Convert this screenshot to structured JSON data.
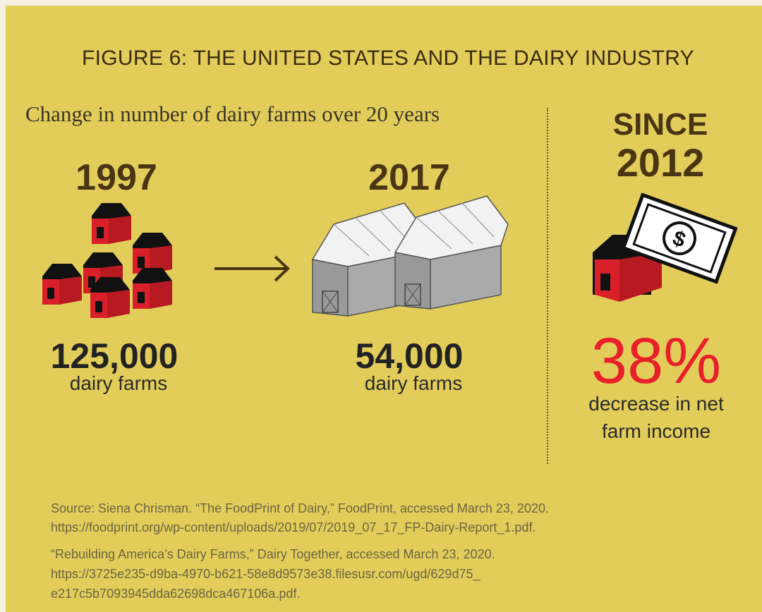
{
  "header": {
    "title": "FIGURE 6: THE UNITED STATES AND THE DAIRY INDUSTRY",
    "subtitle": "Change in number of dairy farms over 20 years"
  },
  "panels": [
    {
      "year": "1997",
      "count": "125,000",
      "unit": "dairy farms"
    },
    {
      "year": "2017",
      "count": "54,000",
      "unit": "dairy farms"
    }
  ],
  "since": {
    "label": "SINCE",
    "year": "2012",
    "percent": "38%",
    "caption": "decrease in net farm income"
  },
  "sources": [
    {
      "lines": [
        "Source: Siena Chrisman. “The FoodPrint of Dairy,” FoodPrint, accessed March 23, 2020.",
        "https://foodprint.org/wp-content/uploads/2019/07/2019_07_17_FP-Dairy-Report_1.pdf."
      ]
    },
    {
      "lines": [
        "“Rebuilding America’s Dairy Farms,” Dairy Together, accessed March 23, 2020.",
        "https://3725e235-d9ba-4970-b621-58e8d9573e38.filesusr.com/ugd/629d75_",
        "e217c5b7093945dda62698dca467106a.pdf."
      ]
    }
  ]
}
